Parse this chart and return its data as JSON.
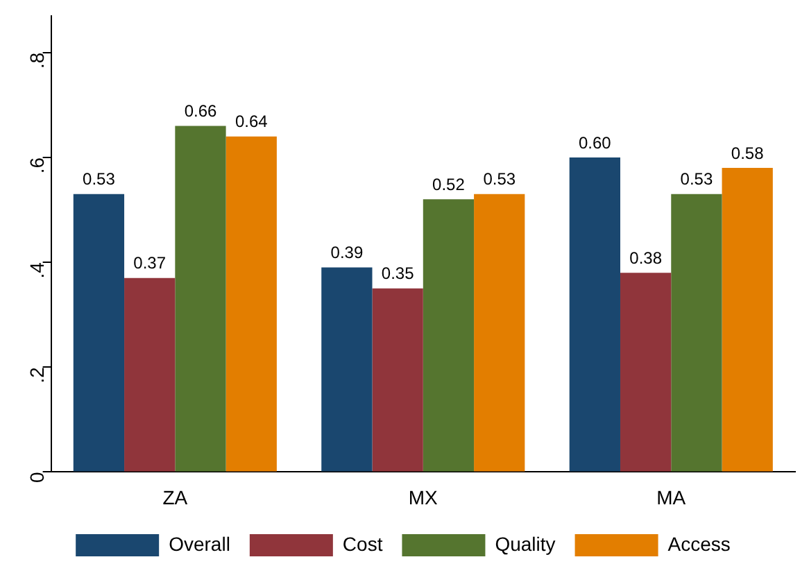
{
  "chart_data": {
    "type": "bar",
    "categories": [
      "ZA",
      "MX",
      "MA"
    ],
    "series": [
      {
        "name": "Overall",
        "color": "#1a476f",
        "values": [
          0.53,
          0.39,
          0.6
        ],
        "value_labels": [
          "0.53",
          "0.39",
          "0.60"
        ]
      },
      {
        "name": "Cost",
        "color": "#90353b",
        "values": [
          0.37,
          0.35,
          0.38
        ],
        "value_labels": [
          "0.37",
          "0.35",
          "0.38"
        ]
      },
      {
        "name": "Quality",
        "color": "#55752f",
        "values": [
          0.66,
          0.52,
          0.53
        ],
        "value_labels": [
          "0.66",
          "0.52",
          "0.53"
        ]
      },
      {
        "name": "Access",
        "color": "#e37e00",
        "values": [
          0.64,
          0.53,
          0.58
        ],
        "value_labels": [
          "0.64",
          "0.53",
          "0.58"
        ]
      }
    ],
    "ylim": [
      0,
      0.87
    ],
    "yticks": [
      0,
      {
        "value": 0.2,
        "label": ".2"
      },
      {
        "value": 0.4,
        "label": ".4"
      },
      {
        "value": 0.6,
        "label": ".6"
      },
      {
        "value": 0.8,
        "label": ".8"
      }
    ],
    "grid": false,
    "legend": "bottom"
  }
}
